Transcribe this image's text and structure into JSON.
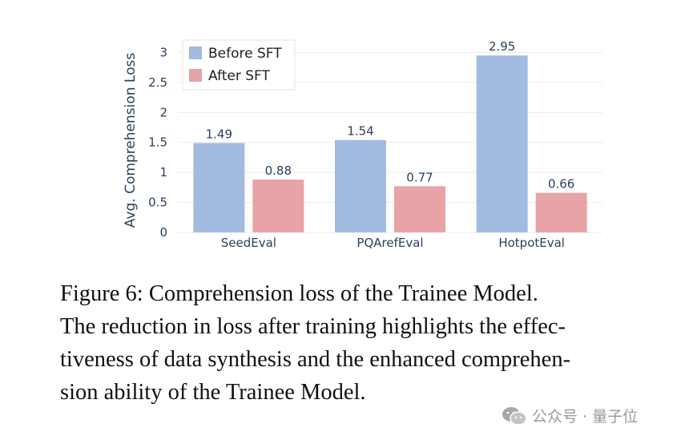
{
  "chart_data": {
    "type": "bar",
    "categories": [
      "SeedEval",
      "PQArefEval",
      "HotpotEval"
    ],
    "series": [
      {
        "name": "Before SFT",
        "values": [
          1.49,
          1.54,
          2.95
        ],
        "color": "#a3bbe0"
      },
      {
        "name": "After SFT",
        "values": [
          0.88,
          0.77,
          0.66
        ],
        "color": "#e7a3a6"
      }
    ],
    "data_labels": [
      [
        "1.49",
        "0.88"
      ],
      [
        "1.54",
        "0.77"
      ],
      [
        "2.95",
        "0.66"
      ]
    ],
    "ylabel": "Avg. Comprehension Loss",
    "xlabel": "",
    "ylim": [
      0,
      3.1
    ],
    "yticks": [
      "0",
      "0.5",
      "1",
      "1.5",
      "2",
      "2.5",
      "3"
    ],
    "ytick_values": [
      0,
      0.5,
      1,
      1.5,
      2,
      2.5,
      3
    ],
    "grid": true,
    "legend_position": "top-left"
  },
  "caption": {
    "lines": [
      "Figure 6:  Comprehension loss of the Trainee Model.",
      "The reduction in loss after training highlights the effec-",
      "tiveness of data synthesis and the enhanced comprehen-",
      "sion ability of the Trainee Model."
    ]
  },
  "watermark": {
    "text": "公众号 · 量子位",
    "icon": "wechat-icon"
  }
}
